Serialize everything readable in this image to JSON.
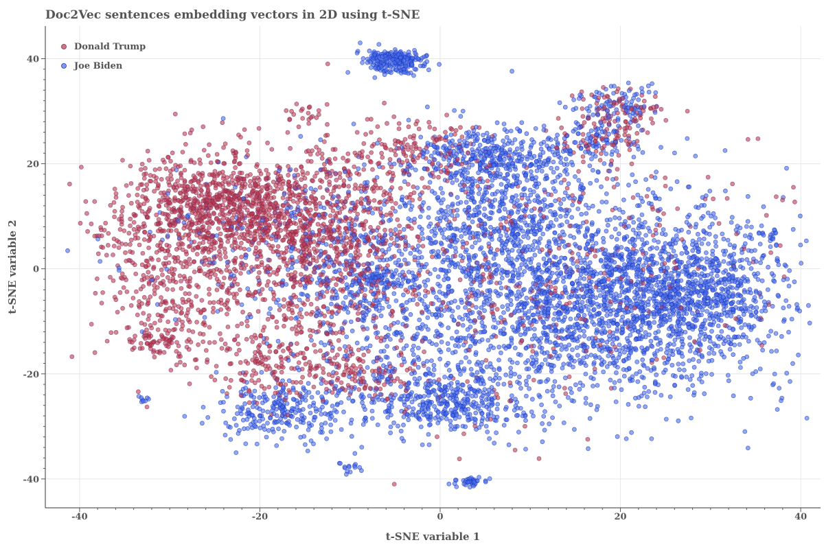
{
  "chart_data": {
    "type": "scatter",
    "title": "Doc2Vec sentences embedding vectors in 2D using t-SNE",
    "xlabel": "t-SNE variable 1",
    "ylabel": "t-SNE variable 2",
    "xlim": [
      -43.8,
      42.2
    ],
    "ylim": [
      -45.5,
      46.2
    ],
    "xticks": [
      -40,
      -20,
      0,
      20,
      40
    ],
    "yticks": [
      -40,
      -20,
      0,
      20,
      40
    ],
    "xtick_labels": [
      "-40",
      "-20",
      "0",
      "20",
      "40"
    ],
    "ytick_labels": [
      "-40",
      "-20",
      "0",
      "20",
      "40"
    ],
    "grid": true,
    "legend_position": "top-left",
    "series": [
      {
        "name": "Donald Trump",
        "color": "#c0394f",
        "edge_color": "#7a2a55",
        "clusters": [
          {
            "cx": -24,
            "cy": 12,
            "sx": 5.5,
            "sy": 5,
            "n": 900
          },
          {
            "cx": -29,
            "cy": -2,
            "sx": 4,
            "sy": 8,
            "n": 350
          },
          {
            "cx": -15,
            "cy": 2,
            "sx": 4.5,
            "sy": 9,
            "n": 450
          },
          {
            "cx": -10,
            "cy": 10,
            "sx": 4,
            "sy": 8,
            "n": 250
          },
          {
            "cx": -19,
            "cy": -18,
            "sx": 4,
            "sy": 4,
            "n": 150
          },
          {
            "cx": -9,
            "cy": -20,
            "sx": 3,
            "sy": 3,
            "n": 120
          },
          {
            "cx": -3,
            "cy": 22,
            "sx": 4,
            "sy": 3,
            "n": 140
          },
          {
            "cx": 20,
            "cy": 30,
            "sx": 2.5,
            "sy": 2,
            "n": 80
          },
          {
            "cx": 18,
            "cy": 24,
            "sx": 2.5,
            "sy": 2,
            "n": 60
          },
          {
            "cx": 0,
            "cy": 0,
            "sx": 14,
            "sy": 13,
            "n": 300
          },
          {
            "cx": 10,
            "cy": -5,
            "sx": 10,
            "sy": 10,
            "n": 120
          },
          {
            "cx": -31,
            "cy": -14,
            "sx": 2,
            "sy": 1.5,
            "n": 60
          },
          {
            "cx": -15,
            "cy": 30,
            "sx": 1.2,
            "sy": 0.8,
            "n": 20
          },
          {
            "cx": -36,
            "cy": 5,
            "sx": 1.5,
            "sy": 6,
            "n": 30
          },
          {
            "cx": 28,
            "cy": 8,
            "sx": 8,
            "sy": 8,
            "n": 40
          }
        ]
      },
      {
        "name": "Joe Biden",
        "color": "#4a6ee8",
        "edge_color": "#1530c0",
        "clusters": [
          {
            "cx": 22,
            "cy": -6,
            "sx": 8,
            "sy": 9,
            "n": 1500
          },
          {
            "cx": 30,
            "cy": -4,
            "sx": 3.5,
            "sy": 5,
            "n": 300
          },
          {
            "cx": 8,
            "cy": -10,
            "sx": 7,
            "sy": 9,
            "n": 500
          },
          {
            "cx": 0,
            "cy": -25,
            "sx": 5,
            "sy": 3,
            "n": 400
          },
          {
            "cx": -17,
            "cy": -27,
            "sx": 4,
            "sy": 3,
            "n": 250
          },
          {
            "cx": 6,
            "cy": 21,
            "sx": 4.5,
            "sy": 3,
            "n": 350
          },
          {
            "cx": 8,
            "cy": 8,
            "sx": 5,
            "sy": 7,
            "n": 300
          },
          {
            "cx": -5,
            "cy": 39.5,
            "sx": 1.8,
            "sy": 1.1,
            "n": 220
          },
          {
            "cx": 20,
            "cy": 31,
            "sx": 2.5,
            "sy": 2,
            "n": 90
          },
          {
            "cx": 18,
            "cy": 24,
            "sx": 2.5,
            "sy": 2,
            "n": 80
          },
          {
            "cx": 0,
            "cy": 5,
            "sx": 10,
            "sy": 10,
            "n": 500
          },
          {
            "cx": -8,
            "cy": -8,
            "sx": 5,
            "sy": 8,
            "n": 300
          },
          {
            "cx": -7,
            "cy": -2,
            "sx": 1.5,
            "sy": 1,
            "n": 60
          },
          {
            "cx": 3,
            "cy": -40.5,
            "sx": 0.9,
            "sy": 0.5,
            "n": 40
          },
          {
            "cx": -10,
            "cy": -38,
            "sx": 0.6,
            "sy": 1,
            "n": 15
          },
          {
            "cx": 36.5,
            "cy": 7,
            "sx": 0.6,
            "sy": 0.7,
            "n": 15
          },
          {
            "cx": -33,
            "cy": -25,
            "sx": 0.3,
            "sy": 0.6,
            "n": 8
          },
          {
            "cx": 12,
            "cy": 2,
            "sx": 14,
            "sy": 12,
            "n": 300
          },
          {
            "cx": -20,
            "cy": 6,
            "sx": 8,
            "sy": 7,
            "n": 120
          }
        ]
      }
    ]
  }
}
